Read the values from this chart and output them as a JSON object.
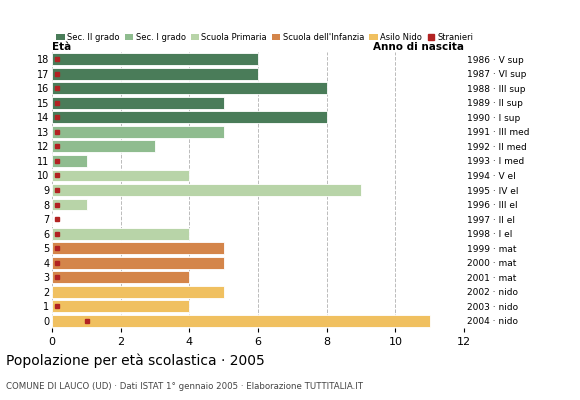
{
  "title": "Popolazione per età scolastica · 2005",
  "subtitle": "COMUNE DI LAUCO (UD) · Dati ISTAT 1° gennaio 2005 · Elaborazione TUTTITALIA.IT",
  "ages": [
    18,
    17,
    16,
    15,
    14,
    13,
    12,
    11,
    10,
    9,
    8,
    7,
    6,
    5,
    4,
    3,
    2,
    1,
    0
  ],
  "years": [
    "1986 · V sup",
    "1987 · VI sup",
    "1988 · III sup",
    "1989 · II sup",
    "1990 · I sup",
    "1991 · III med",
    "1992 · II med",
    "1993 · I med",
    "1994 · V el",
    "1995 · IV el",
    "1996 · III el",
    "1997 · II el",
    "1998 · I el",
    "1999 · mat",
    "2000 · mat",
    "2001 · mat",
    "2002 · nido",
    "2003 · nido",
    "2004 · nido"
  ],
  "bar_values": [
    6,
    6,
    8,
    5,
    8,
    5,
    3,
    1,
    4,
    9,
    1,
    0,
    4,
    5,
    5,
    4,
    5,
    4,
    11
  ],
  "bar_colors": [
    "#4a7c59",
    "#4a7c59",
    "#4a7c59",
    "#4a7c59",
    "#4a7c59",
    "#8fbc8f",
    "#8fbc8f",
    "#8fbc8f",
    "#b8d4a8",
    "#b8d4a8",
    "#b8d4a8",
    "#b8d4a8",
    "#b8d4a8",
    "#d4854a",
    "#d4854a",
    "#d4854a",
    "#f0c060",
    "#f0c060",
    "#f0c060"
  ],
  "stranieri_x": [
    0.15,
    0.15,
    0.15,
    0.15,
    0.15,
    0.15,
    0.15,
    0.15,
    0.15,
    0.15,
    0.15,
    0.15,
    0.15,
    0.15,
    0.15,
    0.15,
    0.15,
    0.15,
    1.0
  ],
  "stranieri_show": [
    1,
    1,
    1,
    1,
    1,
    1,
    1,
    1,
    1,
    1,
    1,
    1,
    1,
    1,
    1,
    1,
    0,
    1,
    1
  ],
  "legend_labels": [
    "Sec. II grado",
    "Sec. I grado",
    "Scuola Primaria",
    "Scuola dell'Infanzia",
    "Asilo Nido",
    "Stranieri"
  ],
  "legend_colors": [
    "#4a7c59",
    "#8fbc8f",
    "#b8d4a8",
    "#d4854a",
    "#f0c060",
    "#b22222"
  ],
  "xlim": [
    0,
    12
  ],
  "xticks": [
    0,
    2,
    4,
    6,
    8,
    10,
    12
  ],
  "background_color": "#ffffff",
  "grid_color": "#bbbbbb"
}
